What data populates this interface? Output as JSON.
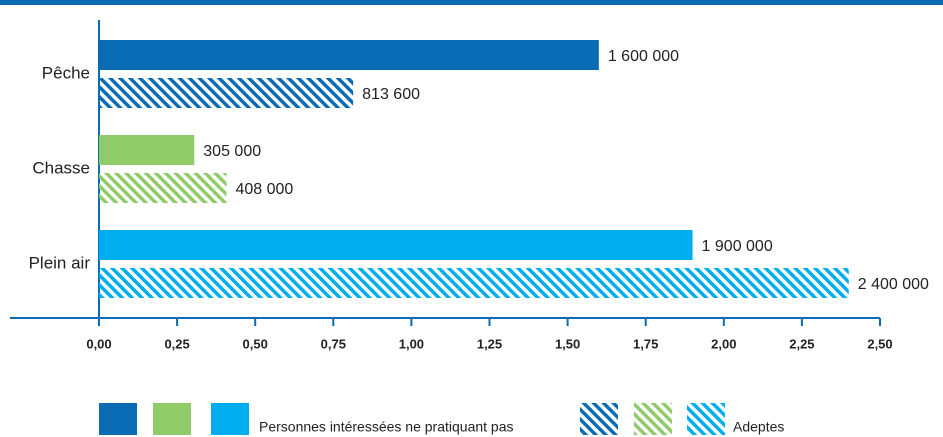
{
  "chart_data": {
    "type": "barh",
    "categories": [
      "Pêche",
      "Chasse",
      "Plein air"
    ],
    "series": [
      {
        "name": "Personnes intéressées ne pratiquant pas",
        "colors": [
          "#0a6cb4",
          "#8fcb68",
          "#00adee"
        ],
        "pattern": "solid",
        "values": [
          1.6,
          0.305,
          1.9
        ],
        "value_labels": [
          "1 600 000",
          "305 000",
          "1 900 000"
        ]
      },
      {
        "name": "Adeptes",
        "colors": [
          "#0a6cb4",
          "#8fcb68",
          "#00adee"
        ],
        "pattern": "hatch",
        "values": [
          0.8136,
          0.408,
          2.4
        ],
        "value_labels": [
          "813 600",
          "408 000",
          "2 400 000"
        ]
      }
    ],
    "xlim": [
      0,
      2.5
    ],
    "xticks": [
      {
        "value": 0,
        "label": "0,00"
      },
      {
        "value": 0.25,
        "label": "0,25"
      },
      {
        "value": 0.5,
        "label": "0,50"
      },
      {
        "value": 0.75,
        "label": "0,75"
      },
      {
        "value": 1,
        "label": "1,00"
      },
      {
        "value": 1.25,
        "label": "1,25"
      },
      {
        "value": 1.5,
        "label": "1,50"
      },
      {
        "value": 1.75,
        "label": "1,75"
      },
      {
        "value": 2,
        "label": "2,00"
      },
      {
        "value": 2.25,
        "label": "2,25"
      },
      {
        "value": 2.5,
        "label": "2,50"
      }
    ]
  }
}
